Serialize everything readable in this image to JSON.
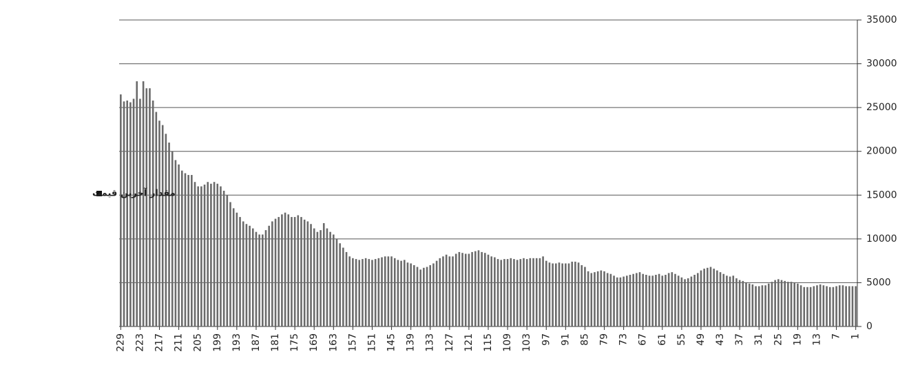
{
  "chart_data": {
    "type": "bar",
    "categories": [
      229,
      null,
      null,
      null,
      null,
      null,
      223,
      null,
      null,
      null,
      null,
      null,
      217,
      null,
      null,
      null,
      null,
      null,
      211,
      null,
      null,
      null,
      null,
      null,
      205,
      null,
      null,
      null,
      null,
      null,
      199,
      null,
      null,
      null,
      null,
      null,
      193,
      null,
      null,
      null,
      null,
      null,
      187,
      null,
      null,
      null,
      null,
      null,
      181,
      null,
      null,
      null,
      null,
      null,
      175,
      null,
      null,
      null,
      null,
      null,
      169,
      null,
      null,
      null,
      null,
      null,
      163,
      null,
      null,
      null,
      null,
      null,
      157,
      null,
      null,
      null,
      null,
      null,
      151,
      null,
      null,
      null,
      null,
      null,
      145,
      null,
      null,
      null,
      null,
      null,
      139,
      null,
      null,
      null,
      null,
      null,
      133,
      null,
      null,
      null,
      null,
      null,
      127,
      null,
      null,
      null,
      null,
      null,
      121,
      null,
      null,
      null,
      null,
      null,
      115,
      null,
      null,
      null,
      null,
      null,
      109,
      null,
      null,
      null,
      null,
      null,
      103,
      null,
      null,
      null,
      null,
      null,
      97,
      null,
      null,
      null,
      null,
      null,
      91,
      null,
      null,
      null,
      null,
      null,
      85,
      null,
      null,
      null,
      null,
      null,
      79,
      null,
      null,
      null,
      null,
      null,
      73,
      null,
      null,
      null,
      null,
      null,
      67,
      null,
      null,
      null,
      null,
      null,
      61,
      null,
      null,
      null,
      null,
      null,
      55,
      null,
      null,
      null,
      null,
      null,
      49,
      null,
      null,
      null,
      null,
      null,
      43,
      null,
      null,
      null,
      null,
      null,
      37,
      null,
      null,
      null,
      null,
      null,
      31,
      null,
      null,
      null,
      null,
      null,
      25,
      null,
      null,
      null,
      null,
      null,
      19,
      null,
      null,
      null,
      null,
      null,
      13,
      null,
      null,
      null,
      null,
      null,
      7,
      null,
      null,
      null,
      null,
      null,
      1
    ],
    "series": [
      {
        "name": "مقدار آخرین قیمت",
        "color": "#6a6a6a",
        "values": [
          26500,
          25700,
          25800,
          25600,
          26000,
          28000,
          26000,
          28000,
          27200,
          27200,
          25800,
          24500,
          23500,
          23000,
          22000,
          21000,
          20000,
          19000,
          18500,
          17800,
          17500,
          17300,
          17300,
          16500,
          16000,
          16000,
          16200,
          16500,
          16300,
          16500,
          16300,
          16000,
          15500,
          15000,
          14200,
          13500,
          13000,
          12500,
          12000,
          11700,
          11500,
          11200,
          10800,
          10500,
          10500,
          11000,
          11500,
          12000,
          12300,
          12500,
          12800,
          13000,
          12800,
          12500,
          12500,
          12700,
          12500,
          12200,
          12000,
          11700,
          11200,
          10800,
          11000,
          11800,
          11200,
          10800,
          10500,
          10000,
          9500,
          9000,
          8500,
          8000,
          7800,
          7700,
          7600,
          7700,
          7800,
          7700,
          7600,
          7700,
          7800,
          7900,
          8000,
          8000,
          8000,
          7800,
          7600,
          7500,
          7600,
          7300,
          7200,
          7000,
          6800,
          6500,
          6700,
          6800,
          7000,
          7200,
          7500,
          7800,
          8000,
          8200,
          8000,
          8000,
          8300,
          8500,
          8400,
          8300,
          8300,
          8500,
          8600,
          8700,
          8500,
          8400,
          8200,
          8000,
          7900,
          7700,
          7600,
          7700,
          7700,
          7800,
          7700,
          7600,
          7700,
          7800,
          7700,
          7800,
          7800,
          7800,
          7800,
          8000,
          7500,
          7300,
          7200,
          7200,
          7300,
          7200,
          7200,
          7200,
          7400,
          7400,
          7300,
          7000,
          6800,
          6300,
          6100,
          6200,
          6300,
          6400,
          6300,
          6100,
          6000,
          5800,
          5600,
          5600,
          5700,
          5800,
          5900,
          6000,
          6100,
          6200,
          6000,
          5900,
          5800,
          5800,
          5900,
          6000,
          5800,
          5900,
          6100,
          6200,
          6000,
          5800,
          5600,
          5400,
          5500,
          5700,
          5900,
          6100,
          6400,
          6600,
          6700,
          6800,
          6600,
          6400,
          6200,
          6000,
          5800,
          5700,
          5800,
          5500,
          5300,
          5200,
          5000,
          4900,
          4800,
          4600,
          4600,
          4700,
          4700,
          4900,
          5100,
          5300,
          5400,
          5300,
          5200,
          5100,
          5100,
          5000,
          4900,
          4700,
          4500,
          4500,
          4500,
          4600,
          4700,
          4800,
          4700,
          4600,
          4500,
          4500,
          4600,
          4700,
          4700,
          4600,
          4600,
          4600,
          4600
        ]
      }
    ],
    "ylim": [
      0,
      35000
    ],
    "yticks": [
      0,
      5000,
      10000,
      15000,
      20000,
      25000,
      30000,
      35000
    ],
    "grid": true,
    "legend": "left"
  }
}
